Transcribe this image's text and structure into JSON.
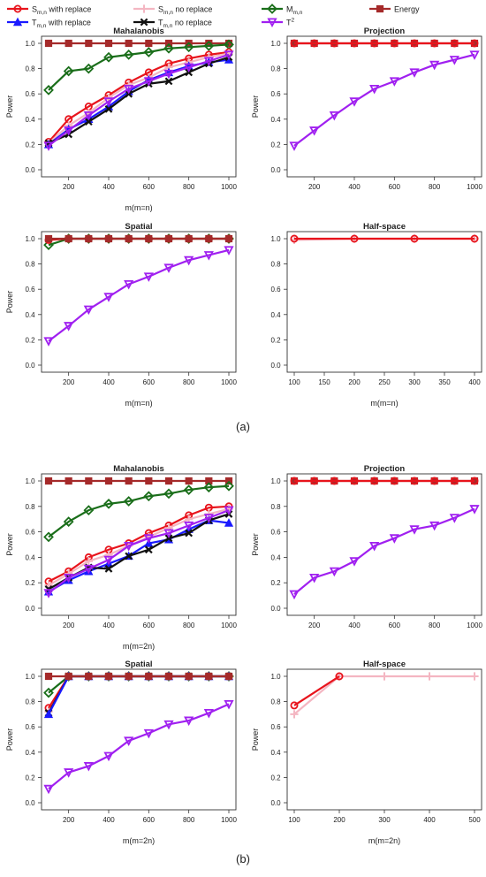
{
  "legend": [
    {
      "key": "s_rep",
      "label": "S",
      "sub": "m,n",
      "suffix": " with replace",
      "color": "#e8141c",
      "marker": "circle"
    },
    {
      "key": "s_norep",
      "label": "S",
      "sub": "m,n",
      "suffix": " no replace",
      "color": "#f4b6c2",
      "marker": "plus"
    },
    {
      "key": "m",
      "label": "M",
      "sub": "m,n",
      "suffix": "",
      "color": "#1a6e1a",
      "marker": "diamond"
    },
    {
      "key": "energy",
      "label": "Energy",
      "sub": "",
      "suffix": "",
      "color": "#a52a2a",
      "marker": "square"
    },
    {
      "key": "t_rep",
      "label": "T",
      "sub": "m,n",
      "suffix": " with replace",
      "color": "#1a1aff",
      "marker": "triangle"
    },
    {
      "key": "t_norep",
      "label": "T",
      "sub": "m,n",
      "suffix": " no replace",
      "color": "#111111",
      "marker": "cross"
    },
    {
      "key": "t2",
      "label": "T",
      "sup": "2",
      "sub": "",
      "suffix": "",
      "color": "#a020f0",
      "marker": "triangle-down"
    }
  ],
  "panel_labels": {
    "a": "(a)",
    "b": "(b)"
  },
  "chart_data": [
    {
      "type": "line",
      "group": "a",
      "title": "Mahalanobis",
      "ylabel": "Power",
      "xlabel": "m(m=n)",
      "xlim": [
        100,
        1000
      ],
      "ylim": [
        0,
        1
      ],
      "xticks": [
        200,
        400,
        600,
        800,
        1000
      ],
      "yticks": [
        0.0,
        0.2,
        0.4,
        0.6,
        0.8,
        1.0
      ],
      "series": [
        {
          "key": "energy",
          "x": [
            100,
            200,
            300,
            400,
            500,
            600,
            700,
            800,
            900,
            1000
          ],
          "y": [
            1,
            1,
            1,
            1,
            1,
            1,
            1,
            1,
            1,
            1
          ]
        },
        {
          "key": "m",
          "x": [
            100,
            200,
            300,
            400,
            500,
            600,
            700,
            800,
            900,
            1000
          ],
          "y": [
            0.63,
            0.78,
            0.8,
            0.89,
            0.91,
            0.93,
            0.96,
            0.97,
            0.98,
            0.99
          ]
        },
        {
          "key": "s_rep",
          "x": [
            100,
            200,
            300,
            400,
            500,
            600,
            700,
            800,
            900,
            1000
          ],
          "y": [
            0.22,
            0.4,
            0.5,
            0.59,
            0.69,
            0.77,
            0.84,
            0.88,
            0.91,
            0.93
          ]
        },
        {
          "key": "s_norep",
          "x": [
            100,
            200,
            300,
            400,
            500,
            600,
            700,
            800,
            900,
            1000
          ],
          "y": [
            0.21,
            0.35,
            0.45,
            0.57,
            0.67,
            0.73,
            0.81,
            0.85,
            0.89,
            0.92
          ]
        },
        {
          "key": "t_rep",
          "x": [
            100,
            200,
            300,
            400,
            500,
            600,
            700,
            800,
            900,
            1000
          ],
          "y": [
            0.2,
            0.32,
            0.4,
            0.5,
            0.62,
            0.71,
            0.77,
            0.82,
            0.85,
            0.87
          ]
        },
        {
          "key": "t_norep",
          "x": [
            100,
            200,
            300,
            400,
            500,
            600,
            700,
            800,
            900,
            1000
          ],
          "y": [
            0.21,
            0.28,
            0.38,
            0.48,
            0.6,
            0.68,
            0.7,
            0.77,
            0.84,
            0.89
          ]
        },
        {
          "key": "t2",
          "x": [
            100,
            200,
            300,
            400,
            500,
            600,
            700,
            800,
            900,
            1000
          ],
          "y": [
            0.19,
            0.31,
            0.43,
            0.54,
            0.64,
            0.7,
            0.76,
            0.81,
            0.86,
            0.91
          ]
        }
      ]
    },
    {
      "type": "line",
      "group": "a",
      "title": "Projection",
      "ylabel": "Power",
      "xlabel": "",
      "xlim": [
        100,
        1000
      ],
      "ylim": [
        0,
        1
      ],
      "xticks": [
        200,
        400,
        600,
        800,
        1000
      ],
      "yticks": [
        0.0,
        0.2,
        0.4,
        0.6,
        0.8,
        1.0
      ],
      "series": [
        {
          "key": "energy",
          "x": [
            100,
            200,
            300,
            400,
            500,
            600,
            700,
            800,
            900,
            1000
          ],
          "y": [
            1,
            1,
            1,
            1,
            1,
            1,
            1,
            1,
            1,
            1
          ]
        },
        {
          "key": "s_rep",
          "x": [
            100,
            200,
            300,
            400,
            500,
            600,
            700,
            800,
            900,
            1000
          ],
          "y": [
            1,
            1,
            1,
            1,
            1,
            1,
            1,
            1,
            1,
            1
          ]
        },
        {
          "key": "t2",
          "x": [
            100,
            200,
            300,
            400,
            500,
            600,
            700,
            800,
            900,
            1000
          ],
          "y": [
            0.19,
            0.31,
            0.43,
            0.54,
            0.64,
            0.7,
            0.77,
            0.83,
            0.87,
            0.91
          ]
        }
      ]
    },
    {
      "type": "line",
      "group": "a",
      "title": "Spatial",
      "ylabel": "Power",
      "xlabel": "m(m=n)",
      "xlim": [
        100,
        1000
      ],
      "ylim": [
        0,
        1
      ],
      "xticks": [
        200,
        400,
        600,
        800,
        1000
      ],
      "yticks": [
        0.0,
        0.2,
        0.4,
        0.6,
        0.8,
        1.0
      ],
      "series": [
        {
          "key": "m",
          "x": [
            100,
            200,
            300,
            400,
            500,
            600,
            700,
            800,
            900,
            1000
          ],
          "y": [
            0.95,
            1,
            1,
            1,
            1,
            1,
            1,
            1,
            1,
            1
          ]
        },
        {
          "key": "s_rep",
          "x": [
            100,
            200,
            300,
            400,
            500,
            600,
            700,
            800,
            900,
            1000
          ],
          "y": [
            0.99,
            1,
            1,
            1,
            1,
            1,
            1,
            1,
            1,
            1
          ]
        },
        {
          "key": "energy",
          "x": [
            100,
            200,
            300,
            400,
            500,
            600,
            700,
            800,
            900,
            1000
          ],
          "y": [
            1,
            1,
            1,
            1,
            1,
            1,
            1,
            1,
            1,
            1
          ]
        },
        {
          "key": "t2",
          "x": [
            100,
            200,
            300,
            400,
            500,
            600,
            700,
            800,
            900,
            1000
          ],
          "y": [
            0.19,
            0.31,
            0.44,
            0.54,
            0.64,
            0.7,
            0.77,
            0.83,
            0.87,
            0.91
          ]
        }
      ]
    },
    {
      "type": "line",
      "group": "a",
      "title": "Half-space",
      "ylabel": "",
      "xlabel": "m(m=n)",
      "xlim": [
        100,
        400
      ],
      "ylim": [
        0,
        1
      ],
      "xticks": [
        100,
        150,
        200,
        250,
        300,
        350,
        400
      ],
      "yticks": [
        0.0,
        0.2,
        0.4,
        0.6,
        0.8,
        1.0
      ],
      "series": [
        {
          "key": "s_norep",
          "x": [
            100,
            200,
            300,
            400
          ],
          "y": [
            0.99,
            1,
            1,
            1
          ]
        },
        {
          "key": "s_rep",
          "x": [
            100,
            200,
            300,
            400
          ],
          "y": [
            1,
            1,
            1,
            1
          ]
        }
      ]
    },
    {
      "type": "line",
      "group": "b",
      "title": "Mahalanobis",
      "ylabel": "Power",
      "xlabel": "m(m=2n)",
      "xlim": [
        100,
        1000
      ],
      "ylim": [
        0,
        1
      ],
      "xticks": [
        200,
        400,
        600,
        800,
        1000
      ],
      "yticks": [
        0.0,
        0.2,
        0.4,
        0.6,
        0.8,
        1.0
      ],
      "series": [
        {
          "key": "energy",
          "x": [
            100,
            200,
            300,
            400,
            500,
            600,
            700,
            800,
            900,
            1000
          ],
          "y": [
            1,
            1,
            1,
            1,
            1,
            1,
            1,
            1,
            1,
            1
          ]
        },
        {
          "key": "m",
          "x": [
            100,
            200,
            300,
            400,
            500,
            600,
            700,
            800,
            900,
            1000
          ],
          "y": [
            0.56,
            0.68,
            0.77,
            0.82,
            0.84,
            0.88,
            0.9,
            0.93,
            0.95,
            0.96
          ]
        },
        {
          "key": "s_rep",
          "x": [
            100,
            200,
            300,
            400,
            500,
            600,
            700,
            800,
            900,
            1000
          ],
          "y": [
            0.21,
            0.29,
            0.4,
            0.46,
            0.51,
            0.59,
            0.65,
            0.73,
            0.79,
            0.8
          ]
        },
        {
          "key": "s_norep",
          "x": [
            100,
            200,
            300,
            400,
            500,
            600,
            700,
            800,
            900,
            1000
          ],
          "y": [
            0.18,
            0.27,
            0.37,
            0.42,
            0.49,
            0.56,
            0.63,
            0.7,
            0.74,
            0.78
          ]
        },
        {
          "key": "t_rep",
          "x": [
            100,
            200,
            300,
            400,
            500,
            600,
            700,
            800,
            900,
            1000
          ],
          "y": [
            0.13,
            0.22,
            0.29,
            0.35,
            0.41,
            0.51,
            0.54,
            0.62,
            0.69,
            0.67
          ]
        },
        {
          "key": "t_norep",
          "x": [
            100,
            200,
            300,
            400,
            500,
            600,
            700,
            800,
            900,
            1000
          ],
          "y": [
            0.15,
            0.24,
            0.32,
            0.31,
            0.41,
            0.46,
            0.55,
            0.59,
            0.69,
            0.74
          ]
        },
        {
          "key": "t2",
          "x": [
            100,
            200,
            300,
            400,
            500,
            600,
            700,
            800,
            900,
            1000
          ],
          "y": [
            0.12,
            0.24,
            0.31,
            0.38,
            0.49,
            0.55,
            0.59,
            0.65,
            0.71,
            0.77
          ]
        }
      ]
    },
    {
      "type": "line",
      "group": "b",
      "title": "Projection",
      "ylabel": "Power",
      "xlabel": "",
      "xlim": [
        100,
        1000
      ],
      "ylim": [
        0,
        1
      ],
      "xticks": [
        200,
        400,
        600,
        800,
        1000
      ],
      "yticks": [
        0.0,
        0.2,
        0.4,
        0.6,
        0.8,
        1.0
      ],
      "series": [
        {
          "key": "energy",
          "x": [
            100,
            200,
            300,
            400,
            500,
            600,
            700,
            800,
            900,
            1000
          ],
          "y": [
            1,
            1,
            1,
            1,
            1,
            1,
            1,
            1,
            1,
            1
          ]
        },
        {
          "key": "s_rep",
          "x": [
            100,
            200,
            300,
            400,
            500,
            600,
            700,
            800,
            900,
            1000
          ],
          "y": [
            1,
            1,
            1,
            1,
            1,
            1,
            1,
            1,
            1,
            1
          ]
        },
        {
          "key": "t2",
          "x": [
            100,
            200,
            300,
            400,
            500,
            600,
            700,
            800,
            900,
            1000
          ],
          "y": [
            0.11,
            0.24,
            0.29,
            0.37,
            0.49,
            0.55,
            0.62,
            0.65,
            0.71,
            0.78
          ]
        }
      ]
    },
    {
      "type": "line",
      "group": "b",
      "title": "Spatial",
      "ylabel": "Power",
      "xlabel": "m(m=2n)",
      "xlim": [
        100,
        1000
      ],
      "ylim": [
        0,
        1
      ],
      "xticks": [
        200,
        400,
        600,
        800,
        1000
      ],
      "yticks": [
        0.0,
        0.2,
        0.4,
        0.6,
        0.8,
        1.0
      ],
      "series": [
        {
          "key": "m",
          "x": [
            100,
            200,
            300,
            400,
            500,
            600,
            700,
            800,
            900,
            1000
          ],
          "y": [
            0.87,
            1,
            1,
            1,
            1,
            1,
            1,
            1,
            1,
            1
          ]
        },
        {
          "key": "s_norep",
          "x": [
            100,
            200,
            300,
            400,
            500,
            600,
            700,
            800,
            900,
            1000
          ],
          "y": [
            0.72,
            1,
            1,
            1,
            1,
            1,
            1,
            1,
            1,
            1
          ]
        },
        {
          "key": "s_rep",
          "x": [
            100,
            200,
            300,
            400,
            500,
            600,
            700,
            800,
            900,
            1000
          ],
          "y": [
            0.75,
            1,
            1,
            1,
            1,
            1,
            1,
            1,
            1,
            1
          ]
        },
        {
          "key": "t_norep",
          "x": [
            100,
            200,
            300,
            400,
            500,
            600,
            700,
            800,
            900,
            1000
          ],
          "y": [
            0.71,
            1,
            1,
            1,
            1,
            1,
            1,
            1,
            1,
            1
          ]
        },
        {
          "key": "t_rep",
          "x": [
            100,
            200,
            300,
            400,
            500,
            600,
            700,
            800,
            900,
            1000
          ],
          "y": [
            0.7,
            1,
            1,
            1,
            1,
            1,
            1,
            1,
            1,
            1
          ]
        },
        {
          "key": "energy",
          "x": [
            100,
            200,
            300,
            400,
            500,
            600,
            700,
            800,
            900,
            1000
          ],
          "y": [
            1,
            1,
            1,
            1,
            1,
            1,
            1,
            1,
            1,
            1
          ]
        },
        {
          "key": "t2",
          "x": [
            100,
            200,
            300,
            400,
            500,
            600,
            700,
            800,
            900,
            1000
          ],
          "y": [
            0.11,
            0.24,
            0.29,
            0.37,
            0.49,
            0.55,
            0.62,
            0.65,
            0.71,
            0.78
          ]
        }
      ]
    },
    {
      "type": "line",
      "group": "b",
      "title": "Half-space",
      "ylabel": "Power",
      "xlabel": "m(m=2n)",
      "xlim": [
        100,
        500
      ],
      "ylim": [
        0,
        1
      ],
      "xticks": [
        100,
        200,
        300,
        400,
        500
      ],
      "yticks": [
        0.0,
        0.2,
        0.4,
        0.6,
        0.8,
        1.0
      ],
      "series": [
        {
          "key": "s_norep",
          "x": [
            100,
            200,
            300,
            400,
            500
          ],
          "y": [
            0.7,
            1,
            1,
            1,
            1
          ]
        },
        {
          "key": "s_rep",
          "x": [
            100,
            200
          ],
          "y": [
            0.77,
            1
          ]
        }
      ]
    }
  ]
}
